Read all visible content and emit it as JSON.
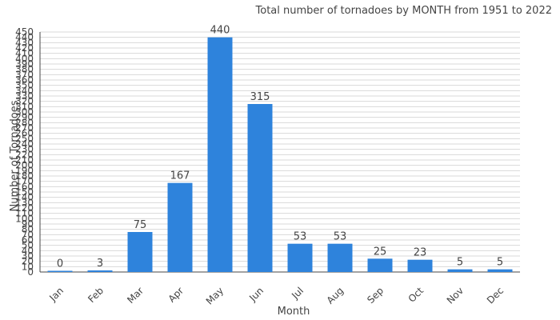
{
  "chart_data": {
    "type": "bar",
    "title": "Total number of tornadoes by MONTH from 1951 to 2022",
    "xlabel": "Month",
    "ylabel": "Number of Tornadoes",
    "categories": [
      "Jan",
      "Feb",
      "Mar",
      "Apr",
      "May",
      "Jun",
      "Jul",
      "Aug",
      "Sep",
      "Oct",
      "Nov",
      "Dec"
    ],
    "values": [
      0,
      3,
      75,
      167,
      440,
      315,
      53,
      53,
      25,
      23,
      5,
      5
    ],
    "ylim": [
      0,
      450
    ],
    "ytick_step": 10,
    "grid": true,
    "bar_color": "#2e83dc",
    "grid_color": "#d9d9d9"
  }
}
